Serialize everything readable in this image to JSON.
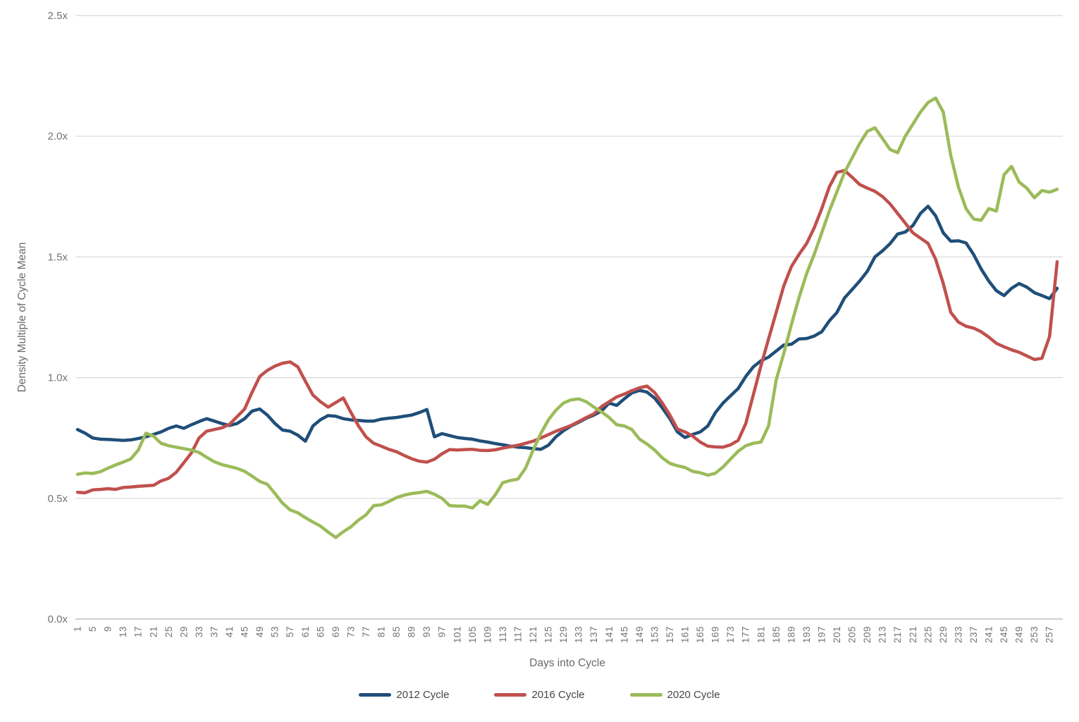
{
  "chart_data": {
    "type": "line",
    "title": "",
    "xlabel": "Days into Cycle",
    "ylabel": "Density Multiple of Cycle Mean",
    "ylim": [
      0,
      2.5
    ],
    "grid": "horizontal",
    "legend_position": "bottom",
    "yticks": [
      {
        "value": 0.0,
        "label": "0.0x"
      },
      {
        "value": 0.5,
        "label": "0.5x"
      },
      {
        "value": 1.0,
        "label": "1.0x"
      },
      {
        "value": 1.5,
        "label": "1.5x"
      },
      {
        "value": 2.0,
        "label": "2.0x"
      },
      {
        "value": 2.5,
        "label": "2.5x"
      }
    ],
    "xtick_labels": [
      "1",
      "5",
      "9",
      "13",
      "17",
      "21",
      "25",
      "29",
      "33",
      "37",
      "41",
      "45",
      "49",
      "53",
      "57",
      "61",
      "65",
      "69",
      "73",
      "77",
      "81",
      "85",
      "89",
      "93",
      "97",
      "101",
      "105",
      "109",
      "113",
      "117",
      "121",
      "125",
      "129",
      "133",
      "137",
      "141",
      "145",
      "149",
      "153",
      "157",
      "161",
      "165",
      "169",
      "173",
      "177",
      "181",
      "185",
      "189",
      "193",
      "197",
      "201",
      "205",
      "209",
      "213",
      "217",
      "221",
      "225",
      "229",
      "233",
      "237",
      "241",
      "245",
      "249",
      "253",
      "257"
    ],
    "x_max_day": 259,
    "days": [
      1,
      3,
      5,
      7,
      9,
      11,
      13,
      15,
      17,
      19,
      21,
      23,
      25,
      27,
      29,
      31,
      33,
      35,
      37,
      39,
      41,
      43,
      45,
      47,
      49,
      51,
      53,
      55,
      57,
      59,
      61,
      63,
      65,
      67,
      69,
      71,
      73,
      75,
      77,
      79,
      81,
      83,
      85,
      87,
      89,
      91,
      93,
      95,
      97,
      99,
      101,
      103,
      105,
      107,
      109,
      111,
      113,
      115,
      117,
      119,
      121,
      123,
      125,
      127,
      129,
      131,
      133,
      135,
      137,
      139,
      141,
      143,
      145,
      147,
      149,
      151,
      153,
      155,
      157,
      159,
      161,
      163,
      165,
      167,
      169,
      171,
      173,
      175,
      177,
      179,
      181,
      183,
      185,
      187,
      189,
      191,
      193,
      195,
      197,
      199,
      201,
      203,
      205,
      207,
      209,
      211,
      213,
      215,
      217,
      219,
      221,
      223,
      225,
      227,
      229,
      231,
      233,
      235,
      237,
      239,
      241,
      243,
      245,
      247,
      249,
      251,
      253,
      255,
      257,
      259
    ],
    "series": [
      {
        "name": "2012 Cycle",
        "color": "#1F4E79",
        "values": [
          0.785,
          0.77,
          0.75,
          0.745,
          0.744,
          0.742,
          0.74,
          0.742,
          0.748,
          0.755,
          0.765,
          0.775,
          0.79,
          0.8,
          0.79,
          0.805,
          0.818,
          0.83,
          0.82,
          0.81,
          0.802,
          0.81,
          0.83,
          0.862,
          0.87,
          0.845,
          0.81,
          0.783,
          0.778,
          0.762,
          0.737,
          0.8,
          0.826,
          0.843,
          0.84,
          0.83,
          0.825,
          0.823,
          0.82,
          0.82,
          0.828,
          0.832,
          0.835,
          0.84,
          0.845,
          0.855,
          0.868,
          0.755,
          0.768,
          0.76,
          0.752,
          0.748,
          0.745,
          0.738,
          0.733,
          0.727,
          0.722,
          0.716,
          0.712,
          0.71,
          0.706,
          0.703,
          0.72,
          0.755,
          0.78,
          0.8,
          0.815,
          0.832,
          0.845,
          0.862,
          0.895,
          0.885,
          0.912,
          0.937,
          0.947,
          0.94,
          0.915,
          0.875,
          0.83,
          0.775,
          0.752,
          0.765,
          0.775,
          0.8,
          0.855,
          0.895,
          0.925,
          0.955,
          1.005,
          1.045,
          1.07,
          1.085,
          1.11,
          1.135,
          1.138,
          1.16,
          1.162,
          1.172,
          1.19,
          1.235,
          1.27,
          1.33,
          1.365,
          1.4,
          1.44,
          1.5,
          1.525,
          1.555,
          1.595,
          1.603,
          1.63,
          1.68,
          1.71,
          1.67,
          1.6,
          1.565,
          1.567,
          1.558,
          1.51,
          1.45,
          1.4,
          1.36,
          1.34,
          1.37,
          1.39,
          1.375,
          1.352,
          1.34,
          1.327,
          1.37
        ]
      },
      {
        "name": "2016 Cycle",
        "color": "#C0504D",
        "values": [
          0.525,
          0.523,
          0.535,
          0.537,
          0.54,
          0.537,
          0.545,
          0.547,
          0.55,
          0.552,
          0.554,
          0.572,
          0.583,
          0.608,
          0.648,
          0.688,
          0.75,
          0.778,
          0.785,
          0.792,
          0.806,
          0.838,
          0.87,
          0.94,
          1.005,
          1.03,
          1.048,
          1.06,
          1.065,
          1.045,
          0.985,
          0.928,
          0.9,
          0.878,
          0.897,
          0.916,
          0.856,
          0.8,
          0.754,
          0.728,
          0.716,
          0.703,
          0.693,
          0.678,
          0.664,
          0.654,
          0.65,
          0.662,
          0.685,
          0.702,
          0.7,
          0.702,
          0.703,
          0.699,
          0.698,
          0.701,
          0.708,
          0.714,
          0.72,
          0.728,
          0.737,
          0.75,
          0.764,
          0.778,
          0.79,
          0.802,
          0.818,
          0.835,
          0.85,
          0.88,
          0.9,
          0.92,
          0.932,
          0.946,
          0.958,
          0.965,
          0.938,
          0.895,
          0.845,
          0.787,
          0.775,
          0.758,
          0.733,
          0.716,
          0.713,
          0.712,
          0.722,
          0.74,
          0.81,
          0.93,
          1.05,
          1.16,
          1.27,
          1.38,
          1.46,
          1.51,
          1.555,
          1.62,
          1.7,
          1.79,
          1.85,
          1.858,
          1.83,
          1.8,
          1.785,
          1.772,
          1.75,
          1.72,
          1.68,
          1.64,
          1.6,
          1.578,
          1.556,
          1.49,
          1.39,
          1.27,
          1.23,
          1.213,
          1.205,
          1.19,
          1.168,
          1.142,
          1.128,
          1.115,
          1.105,
          1.09,
          1.075,
          1.08,
          1.17,
          1.48
        ]
      },
      {
        "name": "2020 Cycle",
        "color": "#9BBB59",
        "values": [
          0.6,
          0.605,
          0.603,
          0.61,
          0.625,
          0.638,
          0.65,
          0.663,
          0.7,
          0.77,
          0.758,
          0.728,
          0.718,
          0.712,
          0.706,
          0.7,
          0.69,
          0.67,
          0.652,
          0.64,
          0.632,
          0.624,
          0.612,
          0.592,
          0.57,
          0.558,
          0.52,
          0.48,
          0.452,
          0.44,
          0.42,
          0.402,
          0.385,
          0.36,
          0.338,
          0.362,
          0.382,
          0.41,
          0.432,
          0.47,
          0.473,
          0.487,
          0.503,
          0.513,
          0.52,
          0.524,
          0.529,
          0.517,
          0.5,
          0.47,
          0.468,
          0.468,
          0.46,
          0.49,
          0.475,
          0.514,
          0.565,
          0.574,
          0.58,
          0.625,
          0.7,
          0.768,
          0.825,
          0.865,
          0.895,
          0.908,
          0.912,
          0.9,
          0.878,
          0.858,
          0.835,
          0.805,
          0.8,
          0.785,
          0.745,
          0.725,
          0.7,
          0.668,
          0.645,
          0.635,
          0.628,
          0.612,
          0.606,
          0.596,
          0.604,
          0.63,
          0.663,
          0.695,
          0.718,
          0.728,
          0.733,
          0.8,
          0.99,
          1.1,
          1.22,
          1.33,
          1.43,
          1.51,
          1.6,
          1.69,
          1.77,
          1.85,
          1.91,
          1.97,
          2.02,
          2.035,
          1.99,
          1.945,
          1.932,
          2.0,
          2.05,
          2.1,
          2.14,
          2.158,
          2.1,
          1.92,
          1.79,
          1.7,
          1.657,
          1.652,
          1.7,
          1.69,
          1.84,
          1.875,
          1.81,
          1.785,
          1.745,
          1.775,
          1.768,
          1.78
        ]
      }
    ],
    "style": {
      "grid_color": "#D9D9D9",
      "axis_line_color": "#BFBFBF",
      "line_width": 4.5
    }
  }
}
